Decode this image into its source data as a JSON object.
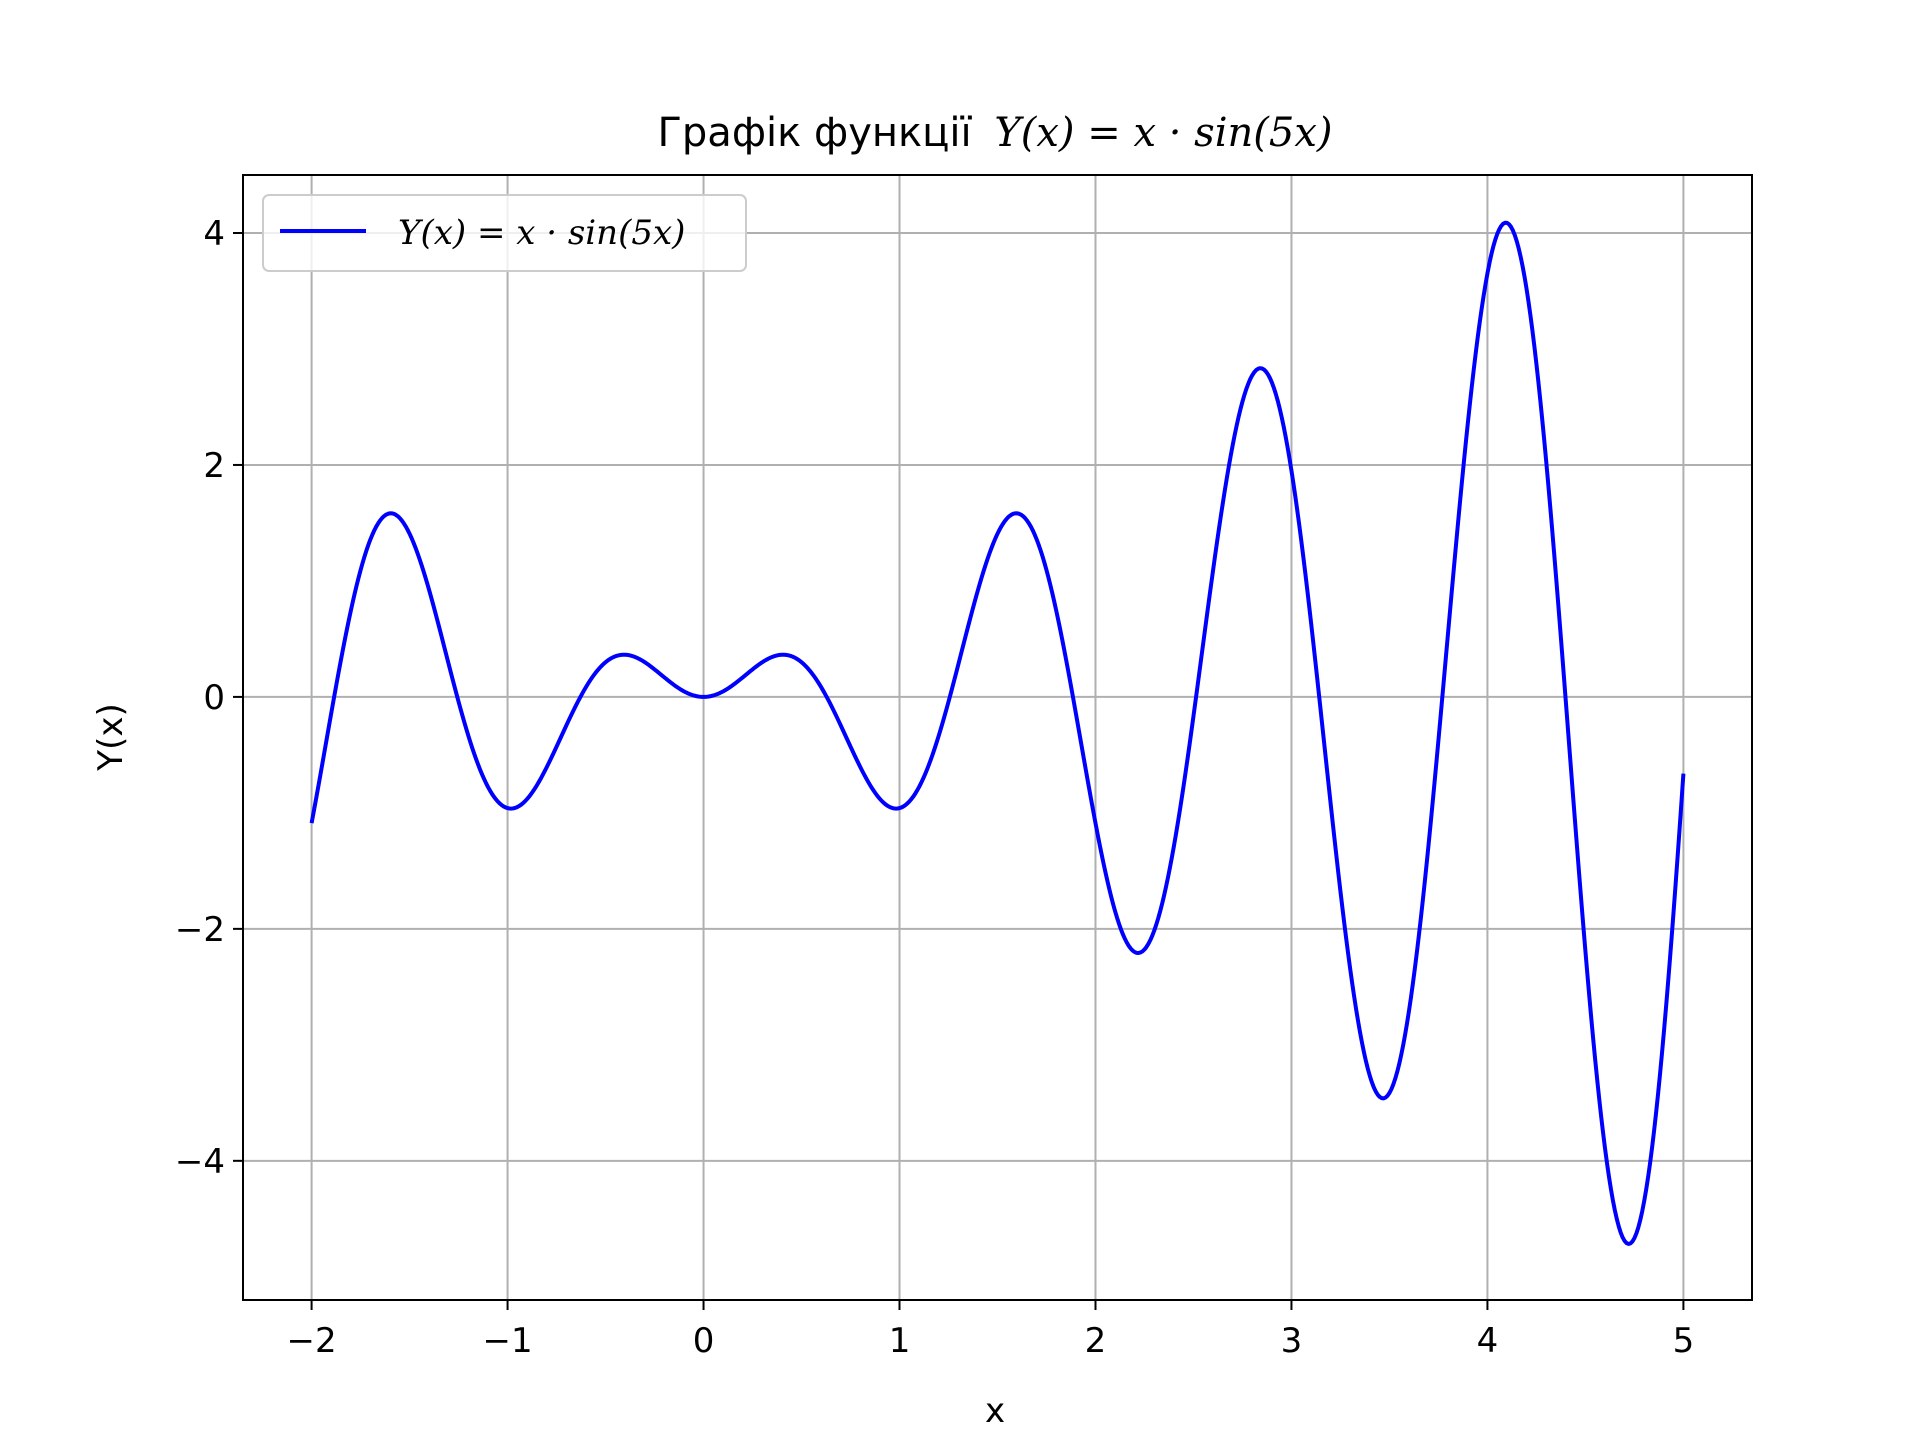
{
  "chart_data": {
    "type": "line",
    "title_prefix": "Графік функції",
    "title_formula": "Y(x) = x · sin(5x)",
    "xlabel": "x",
    "ylabel": "Y(x)",
    "xlim": [
      -2.35,
      5.35
    ],
    "ylim": [
      -5.2,
      4.5
    ],
    "xticks": [
      -2,
      -1,
      0,
      1,
      2,
      3,
      4,
      5
    ],
    "xtick_labels": [
      "−2",
      "−1",
      "0",
      "1",
      "2",
      "3",
      "4",
      "5"
    ],
    "yticks": [
      -4,
      -2,
      0,
      2,
      4
    ],
    "ytick_labels": [
      "−4",
      "−2",
      "0",
      "2",
      "4"
    ],
    "grid": true,
    "legend_position": "top-left",
    "series": [
      {
        "name": "Y(x) = x · sin(5x)",
        "color": "#0000ff",
        "function": "x * sin(5x)",
        "x_range": [
          -2,
          5
        ],
        "samples": 701
      }
    ]
  }
}
